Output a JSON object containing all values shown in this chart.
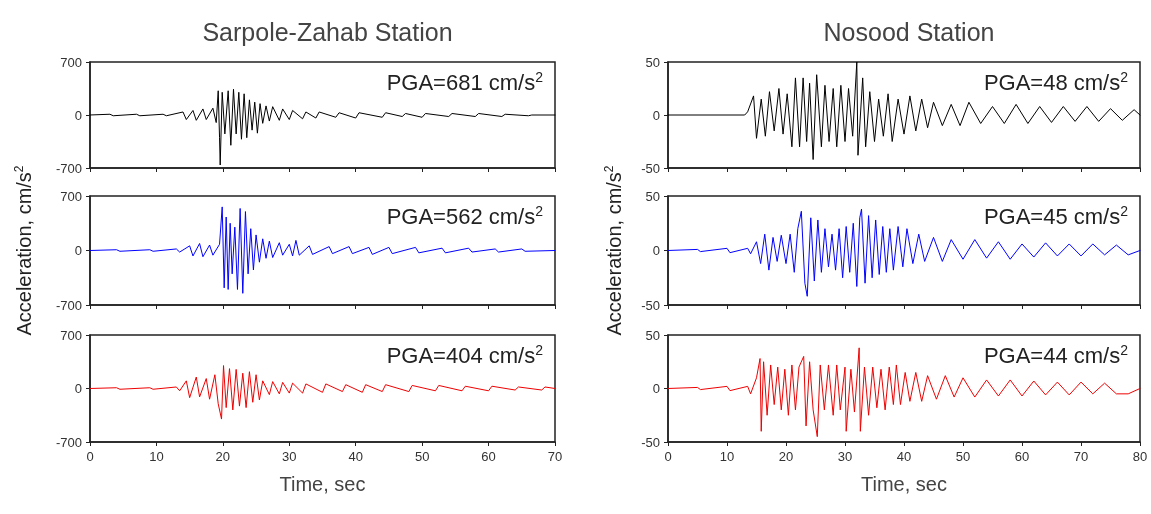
{
  "chart_data": [
    {
      "type": "line",
      "title": "Sarpole-Zahab Station",
      "annotations": [
        "PGA=681 cm/s$^{2}$"
      ],
      "color": "#000000",
      "marker": "none",
      "grid": false,
      "tick_labels": "y",
      "xlim": [
        0,
        70
      ],
      "xticks": [
        0,
        10,
        20,
        30,
        40,
        50,
        60,
        70
      ],
      "ylim": [
        -700,
        700
      ],
      "yticks": [
        -700,
        0,
        700
      ],
      "x": [
        0,
        3,
        3.5,
        7,
        7.5,
        11,
        11.5,
        14,
        14.5,
        15.5,
        16,
        17,
        17.5,
        18.5,
        19,
        19.3,
        19.5,
        19.6,
        19.9,
        20.3,
        20.8,
        21.2,
        21.6,
        22,
        22.4,
        22.8,
        23.2,
        23.6,
        24,
        24.4,
        24.8,
        25.2,
        25.6,
        26,
        26.5,
        27,
        27.5,
        28.5,
        29,
        30,
        30.5,
        32,
        32.5,
        34,
        34.5,
        37,
        37.5,
        40,
        40.5,
        44,
        44.5,
        47,
        47.5,
        50,
        50.5,
        54,
        54.5,
        58,
        58.5,
        62,
        62.5,
        66,
        66.5,
        70
      ],
      "values": [
        0,
        10,
        -10,
        10,
        -10,
        10,
        -10,
        40,
        -60,
        60,
        -70,
        80,
        -60,
        90,
        -100,
        320,
        -300,
        -660,
        300,
        -250,
        320,
        -400,
        340,
        -250,
        300,
        -320,
        280,
        -300,
        200,
        -200,
        170,
        -240,
        150,
        -110,
        120,
        -80,
        110,
        -70,
        80,
        -60,
        60,
        -50,
        40,
        -40,
        40,
        -30,
        30,
        -40,
        30,
        -30,
        30,
        -20,
        20,
        -30,
        20,
        -20,
        20,
        -20,
        20,
        -20,
        10,
        -10,
        0,
        0
      ]
    },
    {
      "type": "line",
      "ylabel": "Acceleration, cm/s$^{2}$",
      "annotations": [
        "PGA=562 cm/s$^{2}$"
      ],
      "color": "#0000ff",
      "marker": "none",
      "grid": false,
      "tick_labels": "y",
      "xlim": [
        0,
        70
      ],
      "xticks": [
        0,
        10,
        20,
        30,
        40,
        50,
        60,
        70
      ],
      "ylim": [
        -700,
        700
      ],
      "yticks": [
        -700,
        0,
        700
      ],
      "x": [
        0,
        4,
        4.5,
        9,
        9.5,
        13,
        13.5,
        15,
        15.5,
        16.5,
        17,
        18,
        18.5,
        19.5,
        19.9,
        20.2,
        20.5,
        20.8,
        21.1,
        21.4,
        21.8,
        22.2,
        22.6,
        23,
        23.4,
        23.8,
        24.2,
        24.6,
        25,
        25.5,
        26,
        26.5,
        27,
        27.5,
        28.5,
        29,
        30,
        30.5,
        31,
        31.5,
        33,
        33.5,
        36,
        36.5,
        39,
        39.5,
        42,
        42.5,
        45,
        45.5,
        49,
        49.5,
        53,
        53.5,
        57,
        57.5,
        61,
        61.5,
        65,
        65.5,
        70
      ],
      "values": [
        0,
        10,
        -10,
        10,
        -10,
        20,
        -20,
        60,
        -70,
        90,
        -80,
        70,
        -60,
        80,
        560,
        -480,
        430,
        -500,
        350,
        -300,
        300,
        -500,
        540,
        -550,
        500,
        -300,
        280,
        -250,
        200,
        -150,
        150,
        -100,
        120,
        -90,
        100,
        -60,
        80,
        -70,
        130,
        -60,
        60,
        -50,
        50,
        -40,
        50,
        -40,
        40,
        -50,
        40,
        -40,
        40,
        -30,
        30,
        -30,
        30,
        -20,
        20,
        -20,
        20,
        -10,
        0
      ]
    },
    {
      "type": "line",
      "xlabel": "Time, sec",
      "annotations": [
        "PGA=404 cm/s$^{2}$"
      ],
      "color": "#ee0000",
      "marker": "none",
      "grid": false,
      "xlim": [
        0,
        70
      ],
      "xticks": [
        0,
        10,
        20,
        30,
        40,
        50,
        60,
        70
      ],
      "ylim": [
        -700,
        700
      ],
      "yticks": [
        -700,
        0,
        700
      ],
      "x": [
        0,
        4,
        4.5,
        9,
        9.5,
        13,
        13.5,
        14.5,
        15,
        16,
        16.5,
        17.5,
        18,
        18.8,
        19.3,
        19.8,
        20.1,
        20.5,
        21,
        21.5,
        22,
        22.5,
        23,
        23.5,
        24,
        24.5,
        25,
        25.5,
        26,
        27,
        27.5,
        28.5,
        29,
        30,
        30.5,
        32,
        32.5,
        35,
        35.5,
        38,
        38.5,
        41,
        41.5,
        44,
        44.5,
        48,
        48.5,
        52,
        52.5,
        56,
        56.5,
        60,
        60.5,
        64,
        64.5,
        68,
        68.5,
        70
      ],
      "values": [
        0,
        10,
        -10,
        10,
        -10,
        20,
        -30,
        100,
        -120,
        150,
        -110,
        130,
        -140,
        180,
        -200,
        -400,
        300,
        -250,
        260,
        -280,
        250,
        -230,
        200,
        -250,
        220,
        -180,
        180,
        -150,
        100,
        -80,
        90,
        -70,
        80,
        -60,
        70,
        -60,
        60,
        -50,
        60,
        -40,
        50,
        -50,
        50,
        -40,
        50,
        -40,
        40,
        -30,
        40,
        -30,
        30,
        -30,
        30,
        -20,
        20,
        -20,
        20,
        0
      ]
    },
    {
      "type": "line",
      "title": "Nosood Station",
      "annotations": [
        "PGA=48 cm/s$^{2}$"
      ],
      "color": "#000000",
      "marker": "none",
      "grid": false,
      "tick_labels": "y",
      "xlim": [
        0,
        80
      ],
      "xticks": [
        0,
        10,
        20,
        30,
        40,
        50,
        60,
        70,
        80
      ],
      "ylim": [
        -50,
        50
      ],
      "yticks": [
        -50,
        0,
        50
      ],
      "x": [
        0,
        13,
        13.5,
        14.5,
        15,
        15.8,
        16.5,
        17.2,
        18,
        18.8,
        19.5,
        20.2,
        21,
        21.6,
        22.3,
        22.9,
        23.5,
        24,
        24.6,
        25.2,
        26,
        26.6,
        27.3,
        28,
        28.6,
        29.3,
        30,
        30.6,
        31.3,
        32,
        32.2,
        33,
        33.5,
        34.2,
        35,
        35.7,
        36.5,
        37.3,
        38,
        39,
        40,
        41,
        42,
        43,
        44,
        45,
        46.5,
        48,
        49.5,
        51,
        53,
        55,
        57,
        59,
        61,
        63,
        65,
        67,
        69,
        71,
        73,
        75,
        77,
        79,
        80
      ],
      "values": [
        0,
        0,
        3,
        18,
        -22,
        15,
        -20,
        22,
        -15,
        25,
        -18,
        20,
        -30,
        35,
        -30,
        35,
        -25,
        30,
        -42,
        38,
        -30,
        28,
        -25,
        25,
        -30,
        28,
        -25,
        25,
        -20,
        50,
        -38,
        35,
        -30,
        22,
        -25,
        15,
        -20,
        20,
        -25,
        15,
        -18,
        18,
        -15,
        15,
        -12,
        12,
        -10,
        10,
        -10,
        12,
        -8,
        8,
        -8,
        10,
        -8,
        8,
        -7,
        8,
        -6,
        8,
        -6,
        6,
        -5,
        5,
        0
      ]
    },
    {
      "type": "line",
      "ylabel": "Acceleration, cm/s$^{2}$",
      "annotations": [
        "PGA=45 cm/s$^{2}$"
      ],
      "color": "#0000ff",
      "marker": "none",
      "grid": false,
      "tick_labels": "y",
      "xlim": [
        0,
        80
      ],
      "xticks": [
        0,
        10,
        20,
        30,
        40,
        50,
        60,
        70,
        80
      ],
      "ylim": [
        -50,
        50
      ],
      "yticks": [
        -50,
        0,
        50
      ],
      "x": [
        0,
        5,
        5.5,
        10,
        10.5,
        13.5,
        14,
        15,
        15.7,
        16.4,
        17.1,
        17.8,
        18.5,
        19.2,
        20,
        20.7,
        21.4,
        22,
        22.6,
        23.2,
        23.6,
        24.2,
        24.8,
        25.4,
        26,
        26.6,
        27.2,
        27.8,
        28.4,
        29,
        29.6,
        30.2,
        30.8,
        31.4,
        32,
        32.5,
        32.8,
        33.4,
        34,
        34.6,
        35.2,
        35.8,
        36.4,
        37,
        37.6,
        38.2,
        39,
        39.8,
        40.5,
        41.5,
        42.5,
        43.5,
        45,
        46.5,
        48,
        50,
        52,
        54,
        56,
        58,
        60,
        62,
        64,
        66,
        68,
        70,
        72,
        74,
        76,
        78,
        80
      ],
      "values": [
        0,
        1,
        -1,
        2,
        -2,
        2,
        -3,
        8,
        -12,
        15,
        -18,
        12,
        -10,
        14,
        -12,
        15,
        -20,
        20,
        36,
        -30,
        -42,
        30,
        -28,
        28,
        -20,
        20,
        -15,
        15,
        -18,
        20,
        -25,
        22,
        -20,
        25,
        -33,
        30,
        38,
        -30,
        32,
        -25,
        28,
        -22,
        22,
        -20,
        20,
        -18,
        22,
        -15,
        20,
        -12,
        15,
        -10,
        12,
        -10,
        10,
        -8,
        10,
        -7,
        8,
        -8,
        6,
        -6,
        7,
        -5,
        6,
        -5,
        6,
        -4,
        5,
        -4,
        0
      ]
    },
    {
      "type": "line",
      "xlabel": "Time, sec",
      "annotations": [
        "PGA=44 cm/s$^{2}$"
      ],
      "color": "#ee0000",
      "marker": "none",
      "grid": false,
      "xlim": [
        0,
        80
      ],
      "xticks": [
        0,
        10,
        20,
        30,
        40,
        50,
        60,
        70,
        80
      ],
      "ylim": [
        -50,
        50
      ],
      "yticks": [
        -50,
        0,
        50
      ],
      "x": [
        0,
        5,
        5.5,
        10,
        10.5,
        13.5,
        14,
        15,
        15.6,
        15.8,
        16.2,
        16.8,
        17.4,
        18,
        18.6,
        19.2,
        19.8,
        20.4,
        21,
        21.6,
        22.2,
        23,
        23.4,
        24,
        24.6,
        25.3,
        25.8,
        26.5,
        27.2,
        28,
        28.6,
        29.2,
        30,
        30.2,
        31,
        31.6,
        32.4,
        32.6,
        33.3,
        34,
        34.7,
        35.4,
        36.1,
        36.8,
        37.5,
        38.2,
        38.7,
        39.4,
        40.2,
        41,
        42,
        43,
        44,
        45.5,
        47,
        48.5,
        50,
        52,
        54,
        56,
        58,
        60,
        62,
        64,
        66,
        68,
        70,
        72,
        74,
        76,
        78,
        80
      ],
      "values": [
        0,
        1,
        -1,
        2,
        -2,
        2,
        -5,
        10,
        28,
        -40,
        25,
        -25,
        22,
        -15,
        20,
        -20,
        18,
        -25,
        22,
        -20,
        20,
        30,
        -35,
        25,
        -20,
        -45,
        22,
        -20,
        22,
        -25,
        22,
        -20,
        20,
        -40,
        18,
        -22,
        38,
        -40,
        20,
        -25,
        20,
        -18,
        18,
        -20,
        20,
        -15,
        22,
        -15,
        15,
        -12,
        15,
        -12,
        12,
        -10,
        12,
        -8,
        10,
        -8,
        8,
        -7,
        8,
        -7,
        7,
        -6,
        6,
        -6,
        6,
        -5,
        5,
        -5,
        -5,
        0
      ]
    }
  ]
}
